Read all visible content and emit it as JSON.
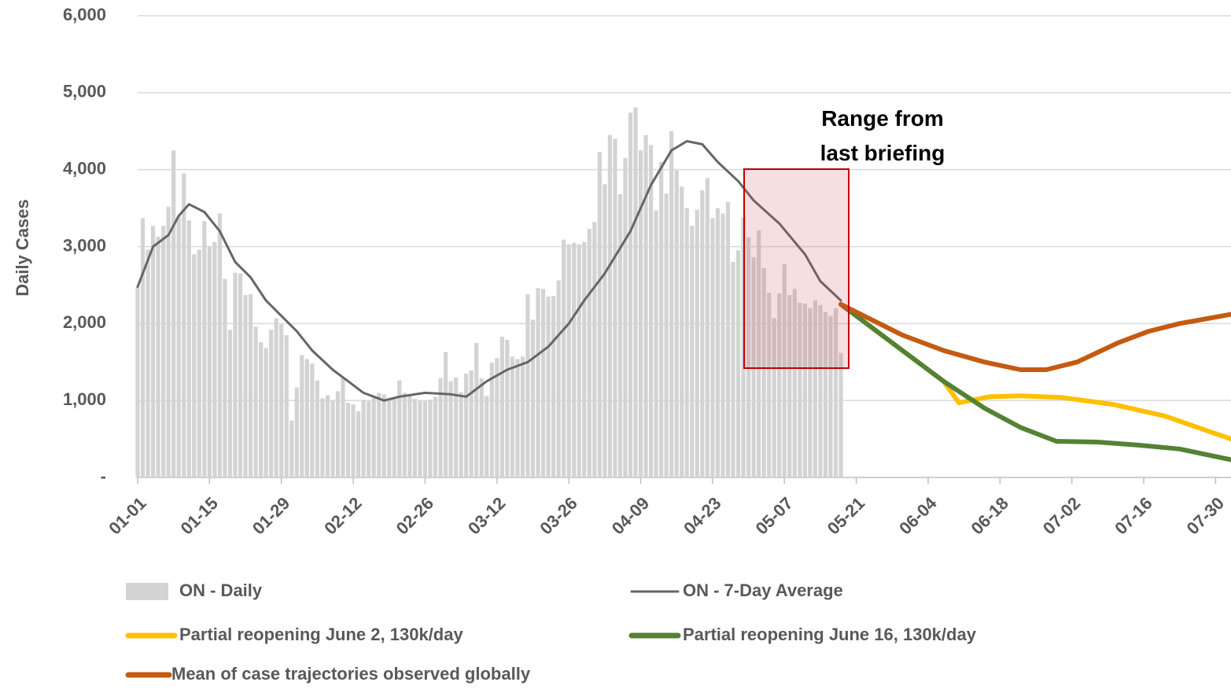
{
  "chart_data": {
    "type": "combo",
    "y_label": "Daily Cases",
    "annotation": "Range from last briefing",
    "ylim": [
      0,
      6000
    ],
    "yticks": [
      {
        "value": 0,
        "label": "-"
      },
      {
        "value": 1000,
        "label": "1,000"
      },
      {
        "value": 2000,
        "label": "2,000"
      },
      {
        "value": 3000,
        "label": "3,000"
      },
      {
        "value": 4000,
        "label": "4,000"
      },
      {
        "value": 5000,
        "label": "5,000"
      },
      {
        "value": 6000,
        "label": "6,000"
      }
    ],
    "xlim": [
      0,
      213
    ],
    "xticks": [
      {
        "value": 0,
        "label": "01-01"
      },
      {
        "value": 14,
        "label": "01-15"
      },
      {
        "value": 28,
        "label": "01-29"
      },
      {
        "value": 42,
        "label": "02-12"
      },
      {
        "value": 56,
        "label": "02-26"
      },
      {
        "value": 70,
        "label": "03-12"
      },
      {
        "value": 84,
        "label": "03-26"
      },
      {
        "value": 98,
        "label": "04-09"
      },
      {
        "value": 112,
        "label": "04-23"
      },
      {
        "value": 126,
        "label": "05-07"
      },
      {
        "value": 140,
        "label": "05-21"
      },
      {
        "value": 154,
        "label": "06-04"
      },
      {
        "value": 168,
        "label": "06-18"
      },
      {
        "value": 182,
        "label": "07-02"
      },
      {
        "value": 196,
        "label": "07-16"
      },
      {
        "value": 210,
        "label": "07-30"
      }
    ],
    "grid": true,
    "series": [
      {
        "name": "ON - Daily",
        "type": "bar",
        "color": "#d3d3d3",
        "x": [
          0,
          1,
          2,
          3,
          4,
          5,
          6,
          7,
          8,
          9,
          10,
          11,
          12,
          13,
          14,
          15,
          16,
          17,
          18,
          19,
          20,
          21,
          22,
          23,
          24,
          25,
          26,
          27,
          28,
          29,
          30,
          31,
          32,
          33,
          34,
          35,
          36,
          37,
          38,
          39,
          40,
          41,
          42,
          43,
          44,
          45,
          46,
          47,
          48,
          49,
          50,
          51,
          52,
          53,
          54,
          55,
          56,
          57,
          58,
          59,
          60,
          61,
          62,
          63,
          64,
          65,
          66,
          67,
          68,
          69,
          70,
          71,
          72,
          73,
          74,
          75,
          76,
          77,
          78,
          79,
          80,
          81,
          82,
          83,
          84,
          85,
          86,
          87,
          88,
          89,
          90,
          91,
          92,
          93,
          94,
          95,
          96,
          97,
          98,
          99,
          100,
          101,
          102,
          103,
          104,
          105,
          106,
          107,
          108,
          109,
          110,
          111,
          112,
          113,
          114,
          115,
          116,
          117,
          118,
          119,
          120,
          121,
          122,
          123,
          124,
          125,
          126,
          127,
          128,
          129,
          130,
          131,
          132,
          133,
          134,
          135,
          136,
          137
        ],
        "values": [
          2480,
          3370,
          2960,
          3270,
          3130,
          3270,
          3520,
          4250,
          3400,
          3950,
          3340,
          2900,
          2960,
          3330,
          3000,
          3060,
          3430,
          2580,
          1920,
          2660,
          2650,
          2370,
          2380,
          1960,
          1760,
          1680,
          1920,
          2070,
          1990,
          1850,
          740,
          1170,
          1590,
          1540,
          1480,
          1260,
          1030,
          1070,
          1000,
          1120,
          1300,
          970,
          950,
          860,
          1010,
          990,
          1040,
          1100,
          1080,
          1000,
          1040,
          1260,
          1100,
          1060,
          1020,
          1000,
          990,
          1010,
          1050,
          1290,
          1630,
          1250,
          1300,
          1110,
          1350,
          1390,
          1750,
          1290,
          1060,
          1490,
          1550,
          1830,
          1790,
          1570,
          1540,
          1570,
          2380,
          2050,
          2460,
          2450,
          2350,
          2360,
          2560,
          3090,
          3030,
          3050,
          3030,
          3060,
          3230,
          3320,
          4230,
          3810,
          4450,
          4400,
          3680,
          4150,
          4740,
          4810,
          4250,
          4450,
          4320,
          3470,
          4100,
          3690,
          4500,
          3990,
          3780,
          3500,
          3270,
          3480,
          3730,
          3890,
          3370,
          3500,
          3430,
          3580,
          2800,
          2950,
          3380,
          3120,
          2860,
          3210,
          2720,
          2400,
          2070,
          2390,
          2770,
          2370,
          2450,
          2270,
          2260,
          2200,
          2300,
          2240,
          2150,
          2100,
          2200,
          1620
        ]
      },
      {
        "name": "ON - 7-Day Average",
        "type": "line",
        "color": "#666666",
        "x": [
          0,
          3,
          6,
          8,
          10,
          13,
          16,
          19,
          22,
          25,
          28,
          31,
          34,
          38,
          41,
          44,
          48,
          51,
          56,
          61,
          64,
          68,
          72,
          76,
          80,
          84,
          87,
          91,
          96,
          100,
          104,
          107,
          110,
          113,
          117,
          120,
          125,
          130,
          133,
          137
        ],
        "values": [
          2480,
          3000,
          3150,
          3400,
          3550,
          3450,
          3200,
          2800,
          2600,
          2300,
          2100,
          1900,
          1650,
          1400,
          1250,
          1100,
          1000,
          1050,
          1100,
          1080,
          1050,
          1250,
          1400,
          1500,
          1700,
          2000,
          2300,
          2650,
          3200,
          3800,
          4250,
          4370,
          4330,
          4100,
          3850,
          3600,
          3300,
          2900,
          2550,
          2300
        ]
      },
      {
        "name": "Partial reopening June 2, 130k/day",
        "type": "line",
        "color": "#ffc000",
        "x": [
          137,
          149,
          157,
          160,
          166,
          172,
          180,
          190,
          200,
          213
        ],
        "values": [
          2250,
          1650,
          1250,
          970,
          1050,
          1060,
          1040,
          950,
          800,
          500
        ]
      },
      {
        "name": "Partial reopening June 16, 130k/day",
        "type": "line",
        "color": "#548235",
        "x": [
          137,
          149,
          157,
          165,
          172,
          179,
          187,
          195,
          203,
          213
        ],
        "values": [
          2250,
          1650,
          1250,
          900,
          650,
          470,
          460,
          420,
          370,
          230
        ]
      },
      {
        "name": "Mean of case trajectories observed globally",
        "type": "line",
        "color": "#c55a11",
        "x": [
          137,
          149,
          157,
          165,
          172,
          177,
          183,
          191,
          197,
          203,
          213
        ],
        "values": [
          2250,
          1850,
          1650,
          1500,
          1400,
          1400,
          1500,
          1750,
          1900,
          2000,
          2120
        ]
      }
    ]
  }
}
